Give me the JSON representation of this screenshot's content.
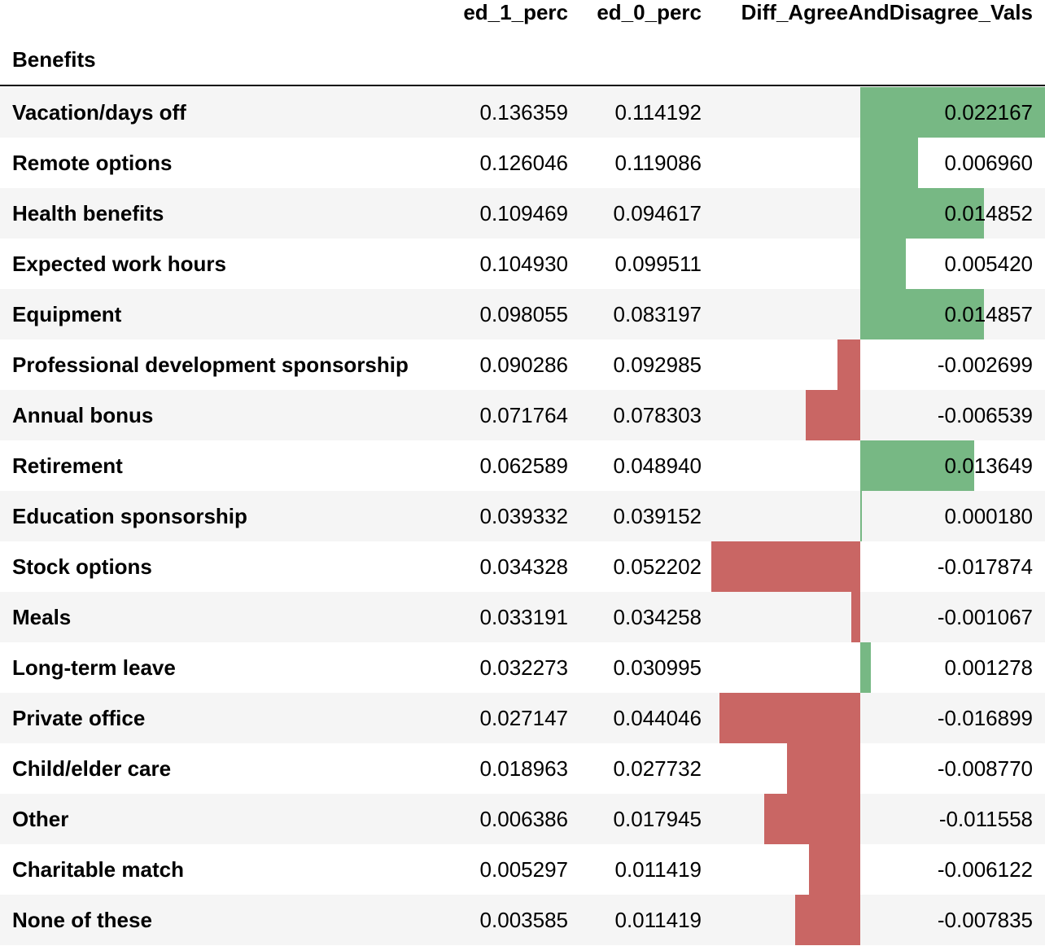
{
  "columns": [
    "ed_1_perc",
    "ed_0_perc",
    "Diff_AgreeAndDisagree_Vals"
  ],
  "index_name": "Benefits",
  "colors": {
    "positive_bar": "#77b884",
    "negative_bar": "#c96664",
    "stripe": "#f5f5f5",
    "plain": "#ffffff"
  },
  "bar_scale": {
    "min": -0.017874,
    "max": 0.022167
  },
  "rows": [
    {
      "label": "Vacation/days off",
      "ed_1_perc": "0.136359",
      "ed_0_perc": "0.114192",
      "diff": "0.022167",
      "diff_value": 0.022167
    },
    {
      "label": "Remote options",
      "ed_1_perc": "0.126046",
      "ed_0_perc": "0.119086",
      "diff": "0.006960",
      "diff_value": 0.00696
    },
    {
      "label": "Health benefits",
      "ed_1_perc": "0.109469",
      "ed_0_perc": "0.094617",
      "diff": "0.014852",
      "diff_value": 0.014852
    },
    {
      "label": "Expected work hours",
      "ed_1_perc": "0.104930",
      "ed_0_perc": "0.099511",
      "diff": "0.005420",
      "diff_value": 0.00542
    },
    {
      "label": "Equipment",
      "ed_1_perc": "0.098055",
      "ed_0_perc": "0.083197",
      "diff": "0.014857",
      "diff_value": 0.014857
    },
    {
      "label": "Professional development sponsorship",
      "ed_1_perc": "0.090286",
      "ed_0_perc": "0.092985",
      "diff": "-0.002699",
      "diff_value": -0.002699
    },
    {
      "label": "Annual bonus",
      "ed_1_perc": "0.071764",
      "ed_0_perc": "0.078303",
      "diff": "-0.006539",
      "diff_value": -0.006539
    },
    {
      "label": "Retirement",
      "ed_1_perc": "0.062589",
      "ed_0_perc": "0.048940",
      "diff": "0.013649",
      "diff_value": 0.013649
    },
    {
      "label": "Education sponsorship",
      "ed_1_perc": "0.039332",
      "ed_0_perc": "0.039152",
      "diff": "0.000180",
      "diff_value": 0.00018
    },
    {
      "label": "Stock options",
      "ed_1_perc": "0.034328",
      "ed_0_perc": "0.052202",
      "diff": "-0.017874",
      "diff_value": -0.017874
    },
    {
      "label": "Meals",
      "ed_1_perc": "0.033191",
      "ed_0_perc": "0.034258",
      "diff": "-0.001067",
      "diff_value": -0.001067
    },
    {
      "label": "Long-term leave",
      "ed_1_perc": "0.032273",
      "ed_0_perc": "0.030995",
      "diff": "0.001278",
      "diff_value": 0.001278
    },
    {
      "label": "Private office",
      "ed_1_perc": "0.027147",
      "ed_0_perc": "0.044046",
      "diff": "-0.016899",
      "diff_value": -0.016899
    },
    {
      "label": "Child/elder care",
      "ed_1_perc": "0.018963",
      "ed_0_perc": "0.027732",
      "diff": "-0.008770",
      "diff_value": -0.00877
    },
    {
      "label": "Other",
      "ed_1_perc": "0.006386",
      "ed_0_perc": "0.017945",
      "diff": "-0.011558",
      "diff_value": -0.011558
    },
    {
      "label": "Charitable match",
      "ed_1_perc": "0.005297",
      "ed_0_perc": "0.011419",
      "diff": "-0.006122",
      "diff_value": -0.006122
    },
    {
      "label": "None of these",
      "ed_1_perc": "0.003585",
      "ed_0_perc": "0.011419",
      "diff": "-0.007835",
      "diff_value": -0.007835
    }
  ]
}
